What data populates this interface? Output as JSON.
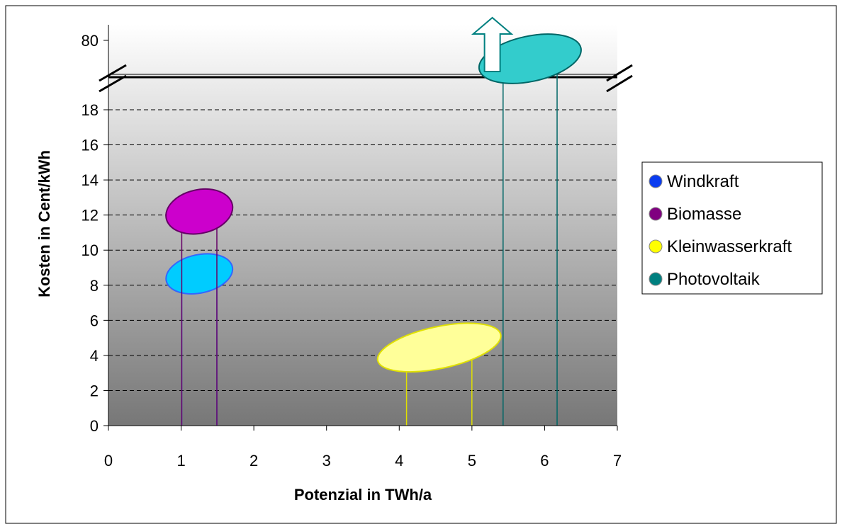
{
  "chart_data": {
    "type": "scatter",
    "title": "",
    "xlabel": "Potenzial in TWh/a",
    "ylabel": "Kosten in Cent/kWh",
    "xlim": [
      0,
      7
    ],
    "ylim": [
      0,
      20
    ],
    "x_ticks": [
      "0",
      "1",
      "2",
      "3",
      "4",
      "5",
      "6",
      "7"
    ],
    "y_ticks": [
      "0",
      "2",
      "4",
      "6",
      "8",
      "10",
      "12",
      "14",
      "16",
      "18"
    ],
    "y_break_label": "80",
    "grid": "horizontal dashed",
    "legend_position": "right",
    "series": [
      {
        "name": "Windkraft",
        "color": "#0a3cf0",
        "fill": "#00ccff",
        "stroke": "#3366ff",
        "x_range": [
          1.0,
          1.5
        ],
        "y_range": [
          7.8,
          9.5
        ],
        "line_to": 8.3
      },
      {
        "name": "Biomasse",
        "color": "#800080",
        "fill": "#cc00cc",
        "stroke": "#660066",
        "x_range": [
          1.0,
          1.5
        ],
        "y_range": [
          11.2,
          13.2
        ],
        "line_to": 12.2
      },
      {
        "name": "Kleinwasserkraft",
        "color": "#ffff00",
        "fill": "#ffff99",
        "stroke": "#e0e000",
        "x_range": [
          3.9,
          5.2
        ],
        "y_range": [
          3.5,
          5.4
        ],
        "line_to": 4.2
      },
      {
        "name": "Photovoltaik",
        "color": "#008080",
        "fill": "#33cccc",
        "stroke": "#006666",
        "x_range": [
          5.3,
          6.3
        ],
        "y_range": [
          60,
          80
        ],
        "line_to": 70,
        "note": "above 80, arrow up"
      }
    ]
  }
}
